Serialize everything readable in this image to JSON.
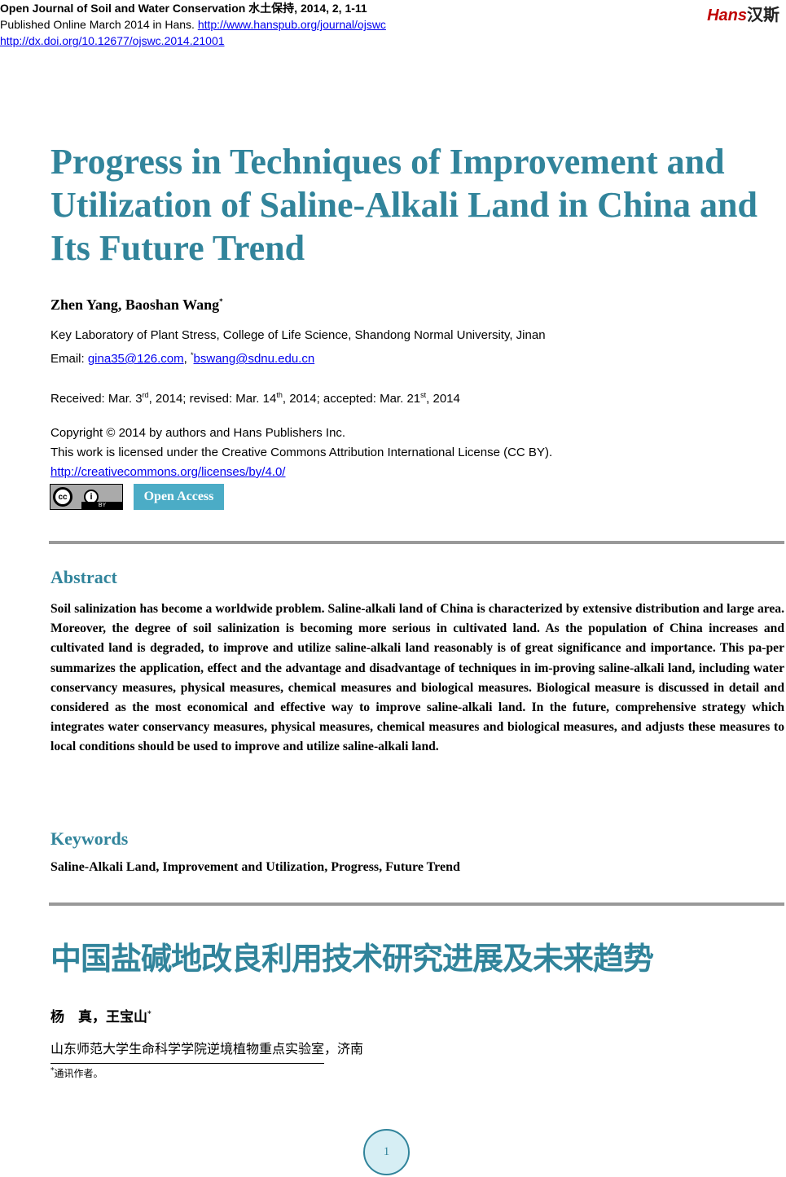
{
  "header": {
    "journal": "Open Journal of Soil and Water Conservation  水土保持, 2014, 2, 1-11",
    "published": "Published Online March 2014 in Hans. ",
    "journal_url": "http://www.hanspub.org/journal/ojswc",
    "doi": "http://dx.doi.org/10.12677/ojswc.2014.21001",
    "logo_en": "Hans",
    "logo_cn": "汉斯"
  },
  "title": "Progress in Techniques of Improvement and Utilization of Saline-Alkali Land in China and Its Future Trend",
  "authors": "Zhen Yang, Baoshan Wang",
  "author_mark": "*",
  "affiliation": "Key Laboratory of Plant Stress, College of Life Science, Shandong Normal University, Jinan",
  "email_label": "Email: ",
  "email1": "gina35@126.com",
  "email2": "bswang@sdnu.edu.cn",
  "received": {
    "a": "Received: Mar. 3",
    "a_sup": "rd",
    "b": ", 2014; revised: Mar. 14",
    "b_sup": "th",
    "c": ", 2014; accepted: Mar. 21",
    "c_sup": "st",
    "d": ", 2014"
  },
  "copyright": "Copyright © 2014 by authors and Hans Publishers Inc.",
  "license": "This work is licensed under the Creative Commons Attribution International License (CC BY).",
  "license_url": "http://creativecommons.org/licenses/by/4.0/",
  "cc_logo": {
    "cc": "cc",
    "by": "BY"
  },
  "open_access": "Open Access",
  "abstract_heading": "Abstract",
  "abstract": "Soil salinization has become a worldwide problem. Saline-alkali land of China is characterized by extensive distribution and large area. Moreover, the degree of soil salinization is becoming more serious in cultivated land. As the population of China increases and cultivated land is degraded, to improve and utilize saline-alkali land reasonably is of great significance and importance. This pa-per summarizes the application, effect and the advantage and disadvantage of techniques in im-proving saline-alkali land, including water conservancy measures, physical measures, chemical measures and biological measures. Biological measure is discussed in detail and considered as the most economical and effective way to improve saline-alkali land. In the future, comprehensive strategy which integrates water conservancy measures, physical measures, chemical measures and biological measures, and adjusts these measures to local conditions should be used to improve and utilize saline-alkali land.",
  "keywords_heading": "Keywords",
  "keywords": "Saline-Alkali Land, Improvement and Utilization, Progress, Future Trend",
  "cn_title": "中国盐碱地改良利用技术研究进展及未来趋势",
  "cn_authors": "杨　真，王宝山",
  "cn_affiliation": "山东师范大学生命科学学院逆境植物重点实验室，济南",
  "footnote": "通讯作者。",
  "page_number": "1",
  "colors": {
    "accent": "#31849b",
    "open_access_bg": "#4bacc6",
    "link": "#0000ee"
  }
}
